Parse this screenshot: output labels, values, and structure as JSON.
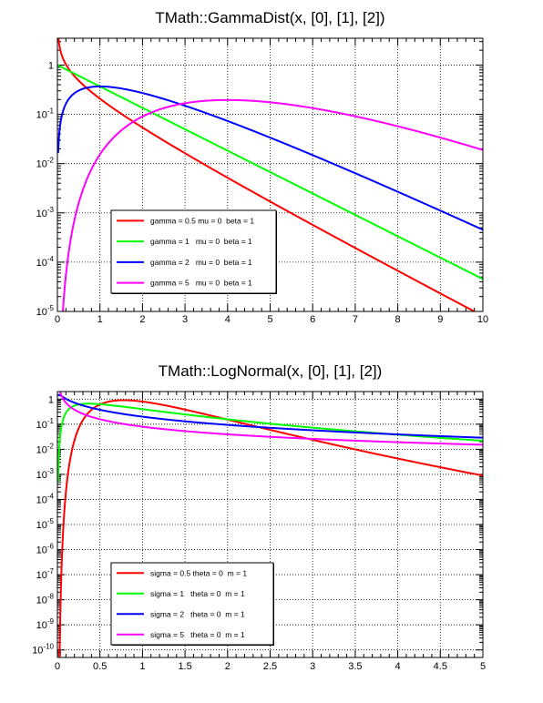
{
  "chart_data": [
    {
      "type": "line",
      "title": "TMath::GammaDist(x, [0], [1], [2])",
      "xlabel": "",
      "ylabel": "",
      "xlim": [
        0,
        10
      ],
      "ylim": [
        1e-05,
        3.5
      ],
      "yscale": "log",
      "grid": true,
      "legend_position": "bottom-left",
      "x_ticks": [
        "0",
        "1",
        "2",
        "3",
        "4",
        "5",
        "6",
        "7",
        "8",
        "9",
        "10"
      ],
      "y_ticks": [
        {
          "base": "10",
          "exp": "-5"
        },
        {
          "base": "10",
          "exp": "-4"
        },
        {
          "base": "10",
          "exp": "-3"
        },
        {
          "base": "10",
          "exp": "-2"
        },
        {
          "base": "10",
          "exp": "-1"
        },
        {
          "base": "1",
          "exp": ""
        }
      ],
      "series": [
        {
          "name": "gamma = 0.5 mu = 0  beta = 1",
          "color": "#ff0000",
          "function": "gamma",
          "params": {
            "gamma": 0.5,
            "mu": 0,
            "beta": 1
          }
        },
        {
          "name": "gamma = 1   mu = 0  beta = 1",
          "color": "#00ff00",
          "function": "gamma",
          "params": {
            "gamma": 1,
            "mu": 0,
            "beta": 1
          }
        },
        {
          "name": "gamma = 2   mu = 0  beta = 1",
          "color": "#0000ff",
          "function": "gamma",
          "params": {
            "gamma": 2,
            "mu": 0,
            "beta": 1
          }
        },
        {
          "name": "gamma = 5   mu = 0  beta = 1",
          "color": "#ff00ff",
          "function": "gamma",
          "params": {
            "gamma": 5,
            "mu": 0,
            "beta": 1
          }
        }
      ]
    },
    {
      "type": "line",
      "title": "TMath::LogNormal(x, [0], [1], [2])",
      "xlabel": "",
      "ylabel": "",
      "xlim": [
        0,
        5
      ],
      "ylim": [
        5e-11,
        2
      ],
      "yscale": "log",
      "grid": true,
      "legend_position": "bottom-left",
      "x_ticks": [
        "0",
        "0.5",
        "1",
        "1.5",
        "2",
        "2.5",
        "3",
        "3.5",
        "4",
        "4.5",
        "5"
      ],
      "y_ticks": [
        {
          "base": "10",
          "exp": "-10"
        },
        {
          "base": "10",
          "exp": "-9"
        },
        {
          "base": "10",
          "exp": "-8"
        },
        {
          "base": "10",
          "exp": "-7"
        },
        {
          "base": "10",
          "exp": "-6"
        },
        {
          "base": "10",
          "exp": "-5"
        },
        {
          "base": "10",
          "exp": "-4"
        },
        {
          "base": "10",
          "exp": "-3"
        },
        {
          "base": "10",
          "exp": "-2"
        },
        {
          "base": "10",
          "exp": "-1"
        },
        {
          "base": "1",
          "exp": ""
        }
      ],
      "series": [
        {
          "name": "sigma = 0.5 theta = 0  m = 1",
          "color": "#ff0000",
          "function": "lognormal",
          "params": {
            "sigma": 0.5,
            "theta": 0,
            "m": 1
          }
        },
        {
          "name": "sigma = 1   theta = 0  m = 1",
          "color": "#00ff00",
          "function": "lognormal",
          "params": {
            "sigma": 1,
            "theta": 0,
            "m": 1
          }
        },
        {
          "name": "sigma = 2   theta = 0  m = 1",
          "color": "#0000ff",
          "function": "lognormal",
          "params": {
            "sigma": 2,
            "theta": 0,
            "m": 1
          }
        },
        {
          "name": "sigma = 5   theta = 0  m = 1",
          "color": "#ff00ff",
          "function": "lognormal",
          "params": {
            "sigma": 5,
            "theta": 0,
            "m": 1
          }
        }
      ]
    }
  ]
}
